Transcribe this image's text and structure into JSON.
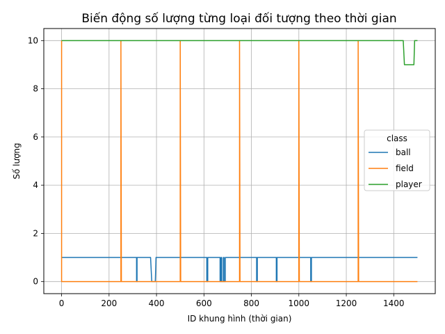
{
  "chart_data": {
    "type": "line",
    "title": "Biến động số lượng từng loại đối tượng theo thời gian",
    "xlabel": "ID khung hình (thời gian)",
    "ylabel": "Số lượng",
    "xlim": [
      -75,
      1575
    ],
    "ylim": [
      -0.5,
      10.5
    ],
    "xticks": [
      0,
      200,
      400,
      600,
      800,
      1000,
      1200,
      1400
    ],
    "yticks": [
      0,
      2,
      4,
      6,
      8,
      10
    ],
    "grid": true,
    "legend": {
      "title": "class",
      "position": "center-right"
    },
    "series": [
      {
        "name": "ball",
        "color": "#1f77b4",
        "points": [
          [
            0,
            1
          ],
          [
            316,
            1
          ],
          [
            316,
            0
          ],
          [
            318,
            0
          ],
          [
            318,
            1
          ],
          [
            375,
            1
          ],
          [
            380,
            0
          ],
          [
            395,
            0
          ],
          [
            398,
            1
          ],
          [
            612,
            1
          ],
          [
            612,
            0
          ],
          [
            616,
            0
          ],
          [
            616,
            1
          ],
          [
            668,
            1
          ],
          [
            668,
            0
          ],
          [
            672,
            0
          ],
          [
            672,
            1
          ],
          [
            675,
            1
          ],
          [
            675,
            0
          ],
          [
            682,
            0
          ],
          [
            682,
            1
          ],
          [
            685,
            1
          ],
          [
            685,
            0
          ],
          [
            690,
            0
          ],
          [
            690,
            1
          ],
          [
            822,
            1
          ],
          [
            822,
            0
          ],
          [
            825,
            0
          ],
          [
            825,
            1
          ],
          [
            905,
            1
          ],
          [
            905,
            0
          ],
          [
            908,
            0
          ],
          [
            908,
            1
          ],
          [
            1050,
            1
          ],
          [
            1050,
            0
          ],
          [
            1053,
            0
          ],
          [
            1053,
            1
          ],
          [
            1500,
            1
          ]
        ]
      },
      {
        "name": "field",
        "color": "#ff7f0e",
        "points": [
          [
            0,
            10
          ],
          [
            0,
            0
          ],
          [
            250,
            0
          ],
          [
            250,
            10
          ],
          [
            252,
            0
          ],
          [
            500,
            0
          ],
          [
            500,
            10
          ],
          [
            502,
            0
          ],
          [
            750,
            0
          ],
          [
            750,
            10
          ],
          [
            752,
            0
          ],
          [
            1000,
            0
          ],
          [
            1000,
            10
          ],
          [
            1002,
            0
          ],
          [
            1250,
            0
          ],
          [
            1250,
            10
          ],
          [
            1252,
            0
          ],
          [
            1500,
            0
          ]
        ]
      },
      {
        "name": "player",
        "color": "#2ca02c",
        "points": [
          [
            0,
            10
          ],
          [
            1440,
            10
          ],
          [
            1445,
            9
          ],
          [
            1485,
            9
          ],
          [
            1488,
            10
          ],
          [
            1500,
            10
          ]
        ]
      }
    ]
  }
}
